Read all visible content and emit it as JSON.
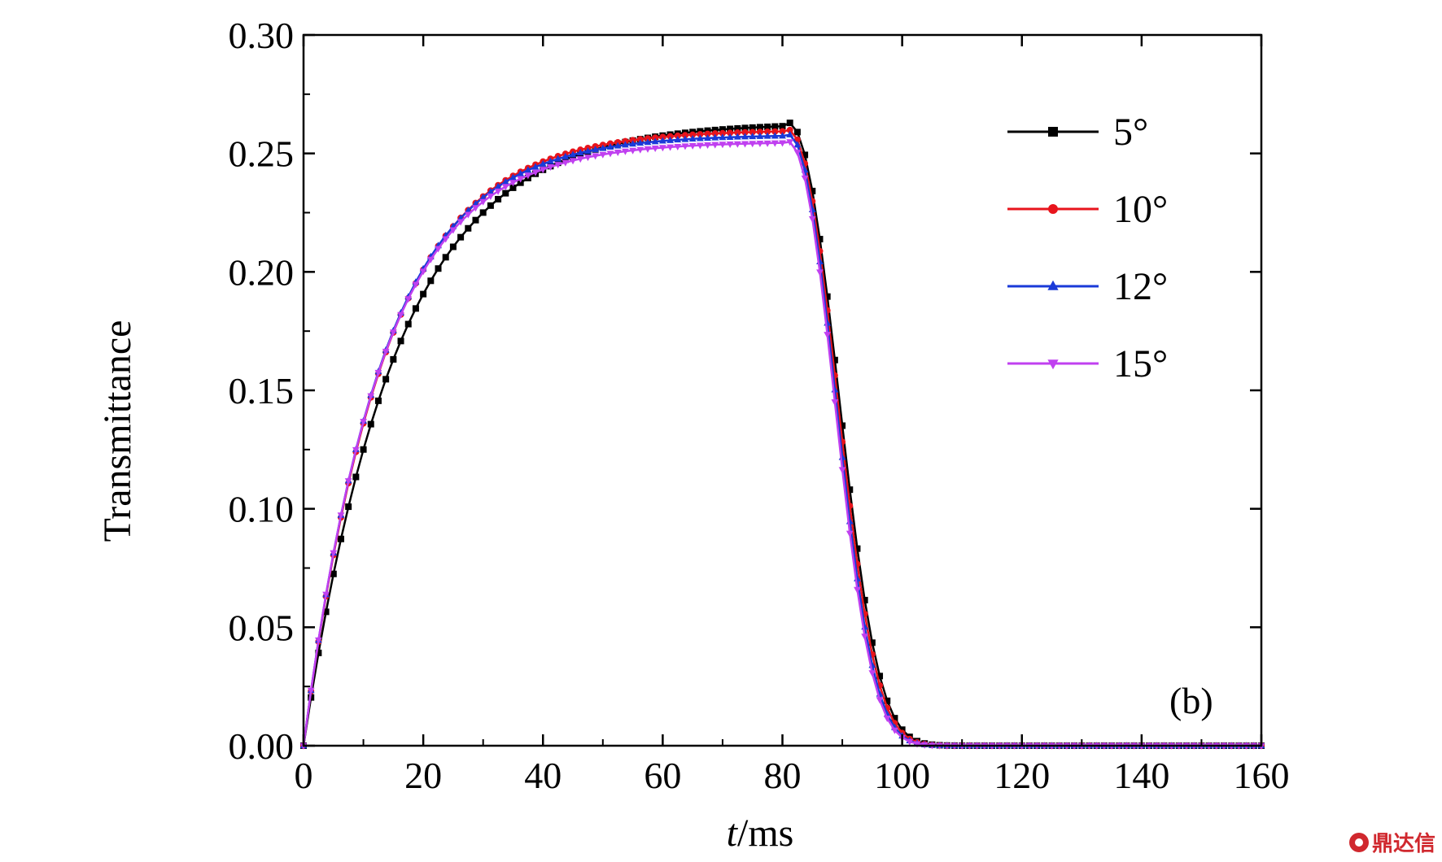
{
  "chart_data": {
    "type": "line",
    "xlabel_italic": "t",
    "xlabel_rest": "/ms",
    "ylabel": "Transmittance",
    "xlim": [
      0,
      160
    ],
    "ylim": [
      0,
      0.3
    ],
    "xticks": [
      0,
      20,
      40,
      60,
      80,
      100,
      120,
      140,
      160
    ],
    "yticks": [
      "0.00",
      "0.05",
      "0.10",
      "0.15",
      "0.20",
      "0.25",
      "0.30"
    ],
    "panel_label": "(b)",
    "legend_position": "top-right",
    "series": [
      {
        "name": "5°",
        "color": "#000000",
        "marker": "square",
        "tau_on": 15.5,
        "plateau": 0.263,
        "peak": 0.268,
        "off_delay": 10.3
      },
      {
        "name": "10°",
        "color": "#e8141c",
        "marker": "circle",
        "tau_on": 13.5,
        "plateau": 0.26,
        "peak": 0.264,
        "off_delay": 10.0
      },
      {
        "name": "12°",
        "color": "#1a3ad8",
        "marker": "triangle-up",
        "tau_on": 13.2,
        "plateau": 0.258,
        "peak": 0.262,
        "off_delay": 9.7
      },
      {
        "name": "15°",
        "color": "#c040f0",
        "marker": "triangle-down",
        "tau_on": 13.0,
        "plateau": 0.255,
        "peak": 0.258,
        "off_delay": 9.5
      }
    ],
    "switch_off_time": 81,
    "off_tau": 8.5,
    "sample_step": 1.25
  },
  "watermark": "鼎达信"
}
